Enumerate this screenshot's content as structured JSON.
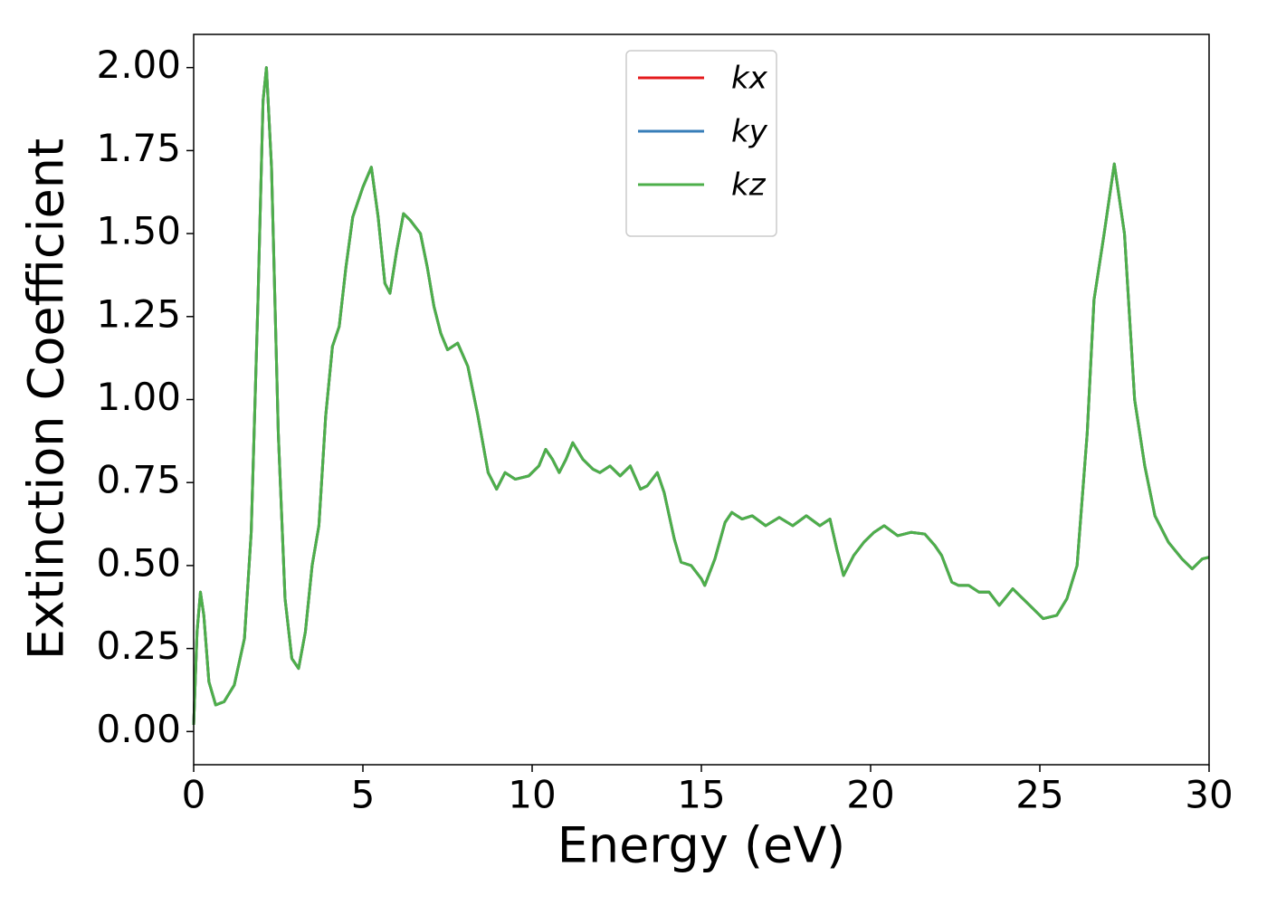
{
  "chart_data": {
    "type": "line",
    "xlabel": "Energy (eV)",
    "ylabel": "Extinction Coefficient",
    "xlim": [
      0,
      30
    ],
    "ylim": [
      -0.1,
      2.1
    ],
    "xticks": [
      0,
      5,
      10,
      15,
      20,
      25,
      30
    ],
    "yticks": [
      {
        "value": 0,
        "label": "0.00"
      },
      {
        "value": 0.25,
        "label": "0.25"
      },
      {
        "value": 0.5,
        "label": "0.50"
      },
      {
        "value": 0.75,
        "label": "0.75"
      },
      {
        "value": 1,
        "label": "1.00"
      },
      {
        "value": 1.25,
        "label": "1.25"
      },
      {
        "value": 1.5,
        "label": "1.50"
      },
      {
        "value": 1.75,
        "label": "1.75"
      },
      {
        "value": 2,
        "label": "2.00"
      }
    ],
    "legend": "upper center",
    "x": [
      0,
      0.1,
      0.2,
      0.3,
      0.45,
      0.65,
      0.9,
      1.2,
      1.5,
      1.7,
      1.9,
      2.05,
      2.15,
      2.3,
      2.5,
      2.7,
      2.9,
      3.1,
      3.3,
      3.5,
      3.7,
      3.9,
      4.1,
      4.3,
      4.5,
      4.7,
      5.0,
      5.25,
      5.45,
      5.65,
      5.8,
      6.0,
      6.2,
      6.4,
      6.7,
      6.9,
      7.1,
      7.3,
      7.5,
      7.8,
      8.1,
      8.4,
      8.7,
      8.95,
      9.2,
      9.5,
      9.9,
      10.2,
      10.4,
      10.6,
      10.8,
      11.0,
      11.2,
      11.5,
      11.8,
      12.0,
      12.3,
      12.6,
      12.9,
      13.2,
      13.4,
      13.7,
      13.9,
      14.2,
      14.4,
      14.7,
      15.0,
      15.1,
      15.4,
      15.7,
      15.9,
      16.2,
      16.5,
      16.9,
      17.3,
      17.7,
      18.1,
      18.5,
      18.8,
      19.0,
      19.2,
      19.5,
      19.8,
      20.1,
      20.4,
      20.8,
      21.2,
      21.6,
      21.9,
      22.1,
      22.4,
      22.6,
      22.9,
      23.2,
      23.5,
      23.8,
      24.2,
      24.5,
      24.8,
      25.1,
      25.5,
      25.8,
      26.1,
      26.4,
      26.6,
      26.9,
      27.2,
      27.5,
      27.8,
      28.1,
      28.4,
      28.8,
      29.2,
      29.5,
      29.8,
      30
    ],
    "series": [
      {
        "name": "kx",
        "color": "#e41a1c",
        "values": [
          0.02,
          0.3,
          0.42,
          0.35,
          0.15,
          0.08,
          0.09,
          0.14,
          0.28,
          0.6,
          1.3,
          1.9,
          2.0,
          1.7,
          0.9,
          0.4,
          0.22,
          0.19,
          0.3,
          0.5,
          0.62,
          0.95,
          1.16,
          1.22,
          1.4,
          1.55,
          1.64,
          1.7,
          1.55,
          1.35,
          1.32,
          1.45,
          1.56,
          1.54,
          1.5,
          1.4,
          1.28,
          1.2,
          1.15,
          1.17,
          1.1,
          0.95,
          0.78,
          0.73,
          0.78,
          0.76,
          0.77,
          0.8,
          0.85,
          0.82,
          0.78,
          0.82,
          0.87,
          0.82,
          0.79,
          0.78,
          0.8,
          0.77,
          0.8,
          0.73,
          0.74,
          0.78,
          0.72,
          0.58,
          0.51,
          0.5,
          0.46,
          0.44,
          0.52,
          0.63,
          0.66,
          0.64,
          0.65,
          0.62,
          0.645,
          0.62,
          0.65,
          0.62,
          0.64,
          0.55,
          0.47,
          0.53,
          0.57,
          0.6,
          0.62,
          0.59,
          0.6,
          0.595,
          0.56,
          0.53,
          0.45,
          0.44,
          0.44,
          0.42,
          0.42,
          0.38,
          0.43,
          0.4,
          0.37,
          0.34,
          0.35,
          0.4,
          0.5,
          0.9,
          1.3,
          1.5,
          1.71,
          1.5,
          1.0,
          0.8,
          0.65,
          0.57,
          0.52,
          0.49,
          0.52,
          0.525
        ]
      },
      {
        "name": "ky",
        "color": "#377eb8",
        "values": [
          0.02,
          0.3,
          0.42,
          0.35,
          0.15,
          0.08,
          0.09,
          0.14,
          0.28,
          0.6,
          1.3,
          1.9,
          2.0,
          1.7,
          0.9,
          0.4,
          0.22,
          0.19,
          0.3,
          0.5,
          0.62,
          0.95,
          1.16,
          1.22,
          1.4,
          1.55,
          1.64,
          1.7,
          1.55,
          1.35,
          1.32,
          1.45,
          1.56,
          1.54,
          1.5,
          1.4,
          1.28,
          1.2,
          1.15,
          1.17,
          1.1,
          0.95,
          0.78,
          0.73,
          0.78,
          0.76,
          0.77,
          0.8,
          0.85,
          0.82,
          0.78,
          0.82,
          0.87,
          0.82,
          0.79,
          0.78,
          0.8,
          0.77,
          0.8,
          0.73,
          0.74,
          0.78,
          0.72,
          0.58,
          0.51,
          0.5,
          0.46,
          0.44,
          0.52,
          0.63,
          0.66,
          0.64,
          0.65,
          0.62,
          0.645,
          0.62,
          0.65,
          0.62,
          0.64,
          0.55,
          0.47,
          0.53,
          0.57,
          0.6,
          0.62,
          0.59,
          0.6,
          0.595,
          0.56,
          0.53,
          0.45,
          0.44,
          0.44,
          0.42,
          0.42,
          0.38,
          0.43,
          0.4,
          0.37,
          0.34,
          0.35,
          0.4,
          0.5,
          0.9,
          1.3,
          1.5,
          1.71,
          1.5,
          1.0,
          0.8,
          0.65,
          0.57,
          0.52,
          0.49,
          0.52,
          0.525
        ]
      },
      {
        "name": "kz",
        "color": "#4daf4a",
        "values": [
          0.02,
          0.3,
          0.42,
          0.35,
          0.15,
          0.08,
          0.09,
          0.14,
          0.28,
          0.6,
          1.3,
          1.9,
          2.0,
          1.7,
          0.9,
          0.4,
          0.22,
          0.19,
          0.3,
          0.5,
          0.62,
          0.95,
          1.16,
          1.22,
          1.4,
          1.55,
          1.64,
          1.7,
          1.55,
          1.35,
          1.32,
          1.45,
          1.56,
          1.54,
          1.5,
          1.4,
          1.28,
          1.2,
          1.15,
          1.17,
          1.1,
          0.95,
          0.78,
          0.73,
          0.78,
          0.76,
          0.77,
          0.8,
          0.85,
          0.82,
          0.78,
          0.82,
          0.87,
          0.82,
          0.79,
          0.78,
          0.8,
          0.77,
          0.8,
          0.73,
          0.74,
          0.78,
          0.72,
          0.58,
          0.51,
          0.5,
          0.46,
          0.44,
          0.52,
          0.63,
          0.66,
          0.64,
          0.65,
          0.62,
          0.645,
          0.62,
          0.65,
          0.62,
          0.64,
          0.55,
          0.47,
          0.53,
          0.57,
          0.6,
          0.62,
          0.59,
          0.6,
          0.595,
          0.56,
          0.53,
          0.45,
          0.44,
          0.44,
          0.42,
          0.42,
          0.38,
          0.43,
          0.4,
          0.37,
          0.34,
          0.35,
          0.4,
          0.5,
          0.9,
          1.3,
          1.5,
          1.71,
          1.5,
          1.0,
          0.8,
          0.65,
          0.57,
          0.52,
          0.49,
          0.52,
          0.525
        ]
      }
    ]
  }
}
